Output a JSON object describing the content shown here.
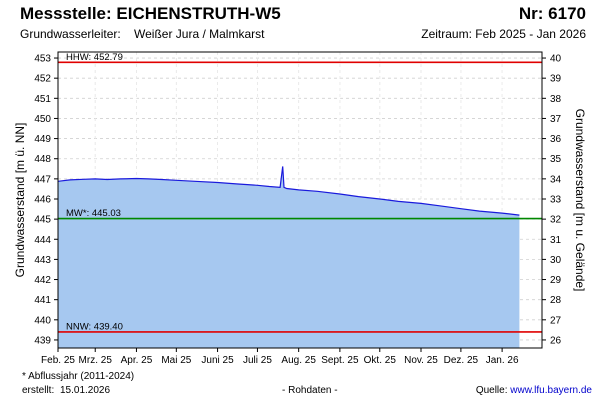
{
  "header": {
    "title": "Messstelle: EICHENSTRUTH-W5",
    "nr": "Nr: 6170",
    "aquifer_label": "Grundwasserleiter:",
    "aquifer_value": "Weißer Jura / Malmkarst",
    "period": "Zeitraum: Feb 2025 - Jan 2026"
  },
  "footer": {
    "footnote": "* Abflussjahr (2011-2024)",
    "created_label": "erstellt:",
    "created_value": "15.01.2026",
    "raw_data": "- Rohdaten -",
    "source_label": "Quelle:",
    "source_url": "www.lfu.bayern.de"
  },
  "colors": {
    "area": "#a6c8f0",
    "line": "#1a1adc",
    "hhw": "#e00000",
    "nnw": "#e00000",
    "mw": "#008800",
    "grid": "#d0d0d0"
  },
  "chart_data": {
    "type": "area",
    "xlabel": "",
    "ylabel": "Grundwasserstand [m ü. NN]",
    "ylabel_right": "Grundwasserstand [m u. Gelände]",
    "ylim": [
      438.6,
      453.3
    ],
    "yticks": [
      439,
      440,
      441,
      442,
      443,
      444,
      445,
      446,
      447,
      448,
      449,
      450,
      451,
      452,
      453
    ],
    "yticks_right": [
      26,
      27,
      28,
      29,
      30,
      31,
      32,
      33,
      34,
      35,
      36,
      37,
      38,
      39,
      40
    ],
    "right_axis_offset": 479,
    "x_range": [
      "2025-02-01",
      "2026-01-31"
    ],
    "x_ticks": [
      {
        "label": "Feb. 25",
        "date": "2025-02-01"
      },
      {
        "label": "Mrz. 25",
        "date": "2025-03-01"
      },
      {
        "label": "Apr. 25",
        "date": "2025-04-01"
      },
      {
        "label": "Mai 25",
        "date": "2025-05-01"
      },
      {
        "label": "Juni 25",
        "date": "2025-06-01"
      },
      {
        "label": "Juli 25",
        "date": "2025-07-01"
      },
      {
        "label": "Aug. 25",
        "date": "2025-08-01"
      },
      {
        "label": "Sept. 25",
        "date": "2025-09-01"
      },
      {
        "label": "Okt. 25",
        "date": "2025-10-01"
      },
      {
        "label": "Nov. 25",
        "date": "2025-11-01"
      },
      {
        "label": "Dez. 25",
        "date": "2025-12-01"
      },
      {
        "label": "Jan. 26",
        "date": "2026-01-01"
      }
    ],
    "grid": true,
    "reference_lines": [
      {
        "label": "HHW: 452.79",
        "value": 452.79,
        "color": "#e00000"
      },
      {
        "label": "MW*: 445.03",
        "value": 445.03,
        "color": "#008800"
      },
      {
        "label": "NNW: 439.40",
        "value": 439.4,
        "color": "#e00000"
      }
    ],
    "series": [
      {
        "x": [
          "2025-02-01",
          "2025-02-10",
          "2025-02-20",
          "2025-03-01",
          "2025-03-10",
          "2025-03-20",
          "2025-04-01",
          "2025-04-10",
          "2025-04-20",
          "2025-05-01",
          "2025-05-15",
          "2025-06-01",
          "2025-06-15",
          "2025-07-01",
          "2025-07-10",
          "2025-07-18",
          "2025-07-20",
          "2025-07-21",
          "2025-07-23",
          "2025-08-01",
          "2025-08-15",
          "2025-09-01",
          "2025-09-15",
          "2025-10-01",
          "2025-10-15",
          "2025-11-01",
          "2025-11-15",
          "2025-12-01",
          "2025-12-15",
          "2026-01-01",
          "2026-01-14"
        ],
        "y": [
          446.88,
          446.95,
          446.98,
          447.0,
          446.97,
          447.0,
          447.02,
          447.0,
          446.97,
          446.93,
          446.88,
          446.82,
          446.75,
          446.68,
          446.62,
          446.58,
          447.62,
          446.58,
          446.52,
          446.45,
          446.38,
          446.25,
          446.12,
          446.0,
          445.88,
          445.78,
          445.66,
          445.52,
          445.4,
          445.3,
          445.2
        ]
      }
    ]
  }
}
